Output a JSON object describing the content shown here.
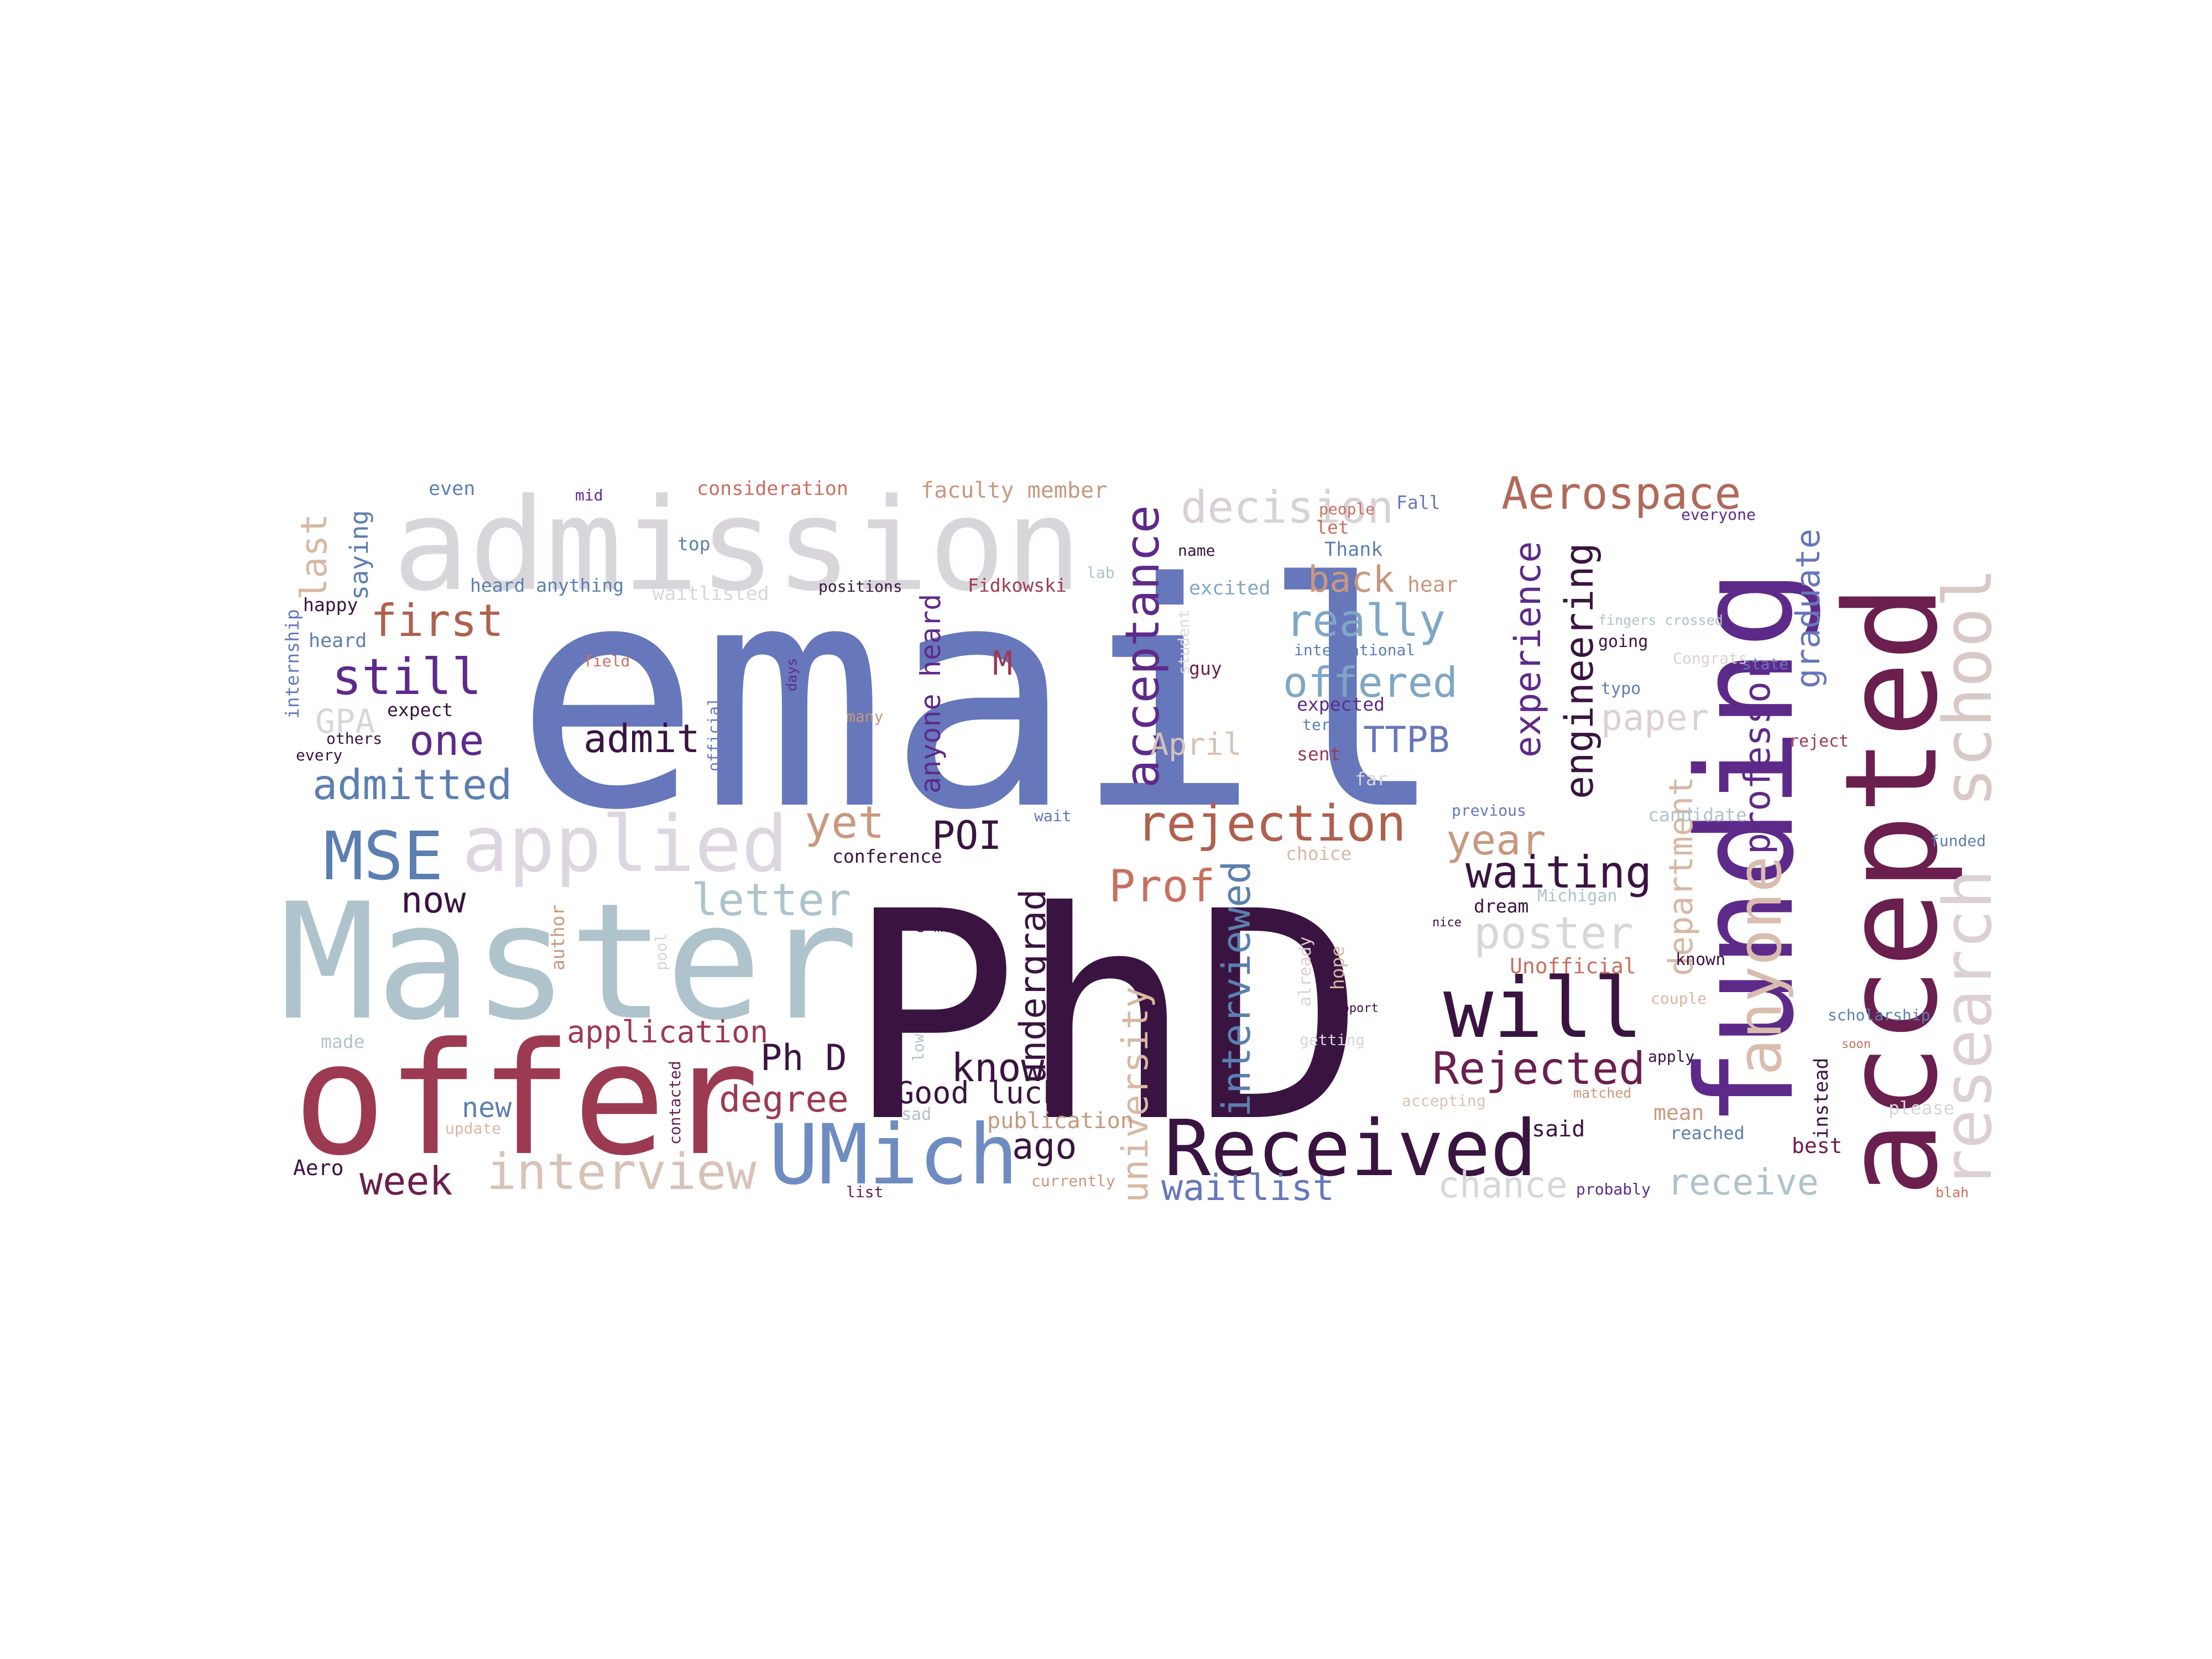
{
  "words": [
    {
      "text": "email",
      "color": "#6677bb"
    },
    {
      "text": "PhD",
      "color": "#3a1440"
    },
    {
      "text": "admission",
      "color": "#d8d6da"
    },
    {
      "text": "Master",
      "color": "#aec3cb"
    },
    {
      "text": "offer",
      "color": "#9c3a52"
    },
    {
      "text": "funding",
      "color": "#5e2a8a"
    },
    {
      "text": "accepted",
      "color": "#6a1f4e"
    },
    {
      "text": "research",
      "color": "#ddd0d2"
    },
    {
      "text": "school",
      "color": "#d8c9c6"
    },
    {
      "text": "Received",
      "color": "#3a1440"
    },
    {
      "text": "UMich",
      "color": "#6e8cc0"
    },
    {
      "text": "applied",
      "color": "#ddd6e0"
    },
    {
      "text": "MSE",
      "color": "#5c7fb0"
    },
    {
      "text": "will",
      "color": "#3a1440"
    },
    {
      "text": "anyone",
      "color": "#d8bcae"
    },
    {
      "text": "acceptance",
      "color": "#5e2a8a"
    },
    {
      "text": "rejection",
      "color": "#b0604f"
    },
    {
      "text": "Aerospace",
      "color": "#b06a5a"
    },
    {
      "text": "decision",
      "color": "#d8d0d6"
    },
    {
      "text": "engineering",
      "color": "#3a1440"
    },
    {
      "text": "experience",
      "color": "#5e2a8a"
    },
    {
      "text": "professor",
      "color": "#5e2a8a"
    },
    {
      "text": "department",
      "color": "#d8b8a4"
    },
    {
      "text": "graduate",
      "color": "#6677bb"
    },
    {
      "text": "interview",
      "color": "#d8c2b8"
    },
    {
      "text": "interviewed",
      "color": "#5c7fb0"
    },
    {
      "text": "university",
      "color": "#d8b8a4"
    },
    {
      "text": "undergrad",
      "color": "#3a1440"
    },
    {
      "text": "anyone heard",
      "color": "#5e2a8a"
    },
    {
      "text": "letter",
      "color": "#aec3cb"
    },
    {
      "text": "poster",
      "color": "#d8d6da"
    },
    {
      "text": "waiting",
      "color": "#3a1440"
    },
    {
      "text": "Rejected",
      "color": "#6a1f4e"
    },
    {
      "text": "waitlist",
      "color": "#6677bb"
    },
    {
      "text": "chance",
      "color": "#d8d6da"
    },
    {
      "text": "receive",
      "color": "#aec3cb"
    },
    {
      "text": "admitted",
      "color": "#5c7fb0"
    },
    {
      "text": "first",
      "color": "#b0604f"
    },
    {
      "text": "still",
      "color": "#5e2a8a"
    },
    {
      "text": "one",
      "color": "#5e2a8a"
    },
    {
      "text": "admit",
      "color": "#3a1440"
    },
    {
      "text": "really",
      "color": "#7fa6c4"
    },
    {
      "text": "offered",
      "color": "#7fa6c4"
    },
    {
      "text": "TTPB",
      "color": "#6677bb"
    },
    {
      "text": "back",
      "color": "#c8987e"
    },
    {
      "text": "paper",
      "color": "#ddd0d2"
    },
    {
      "text": "year",
      "color": "#c8987e"
    },
    {
      "text": "Prof",
      "color": "#c87060"
    },
    {
      "text": "POI",
      "color": "#3a1440"
    },
    {
      "text": "yet",
      "color": "#c8987e"
    },
    {
      "text": "now",
      "color": "#3a1440"
    },
    {
      "text": "know",
      "color": "#3a1440"
    },
    {
      "text": "Ph D",
      "color": "#3a1440"
    },
    {
      "text": "degree",
      "color": "#9c3a52"
    },
    {
      "text": "application",
      "color": "#9c3a52"
    },
    {
      "text": "Good luck",
      "color": "#3a1440"
    },
    {
      "text": "ago",
      "color": "#3a1440"
    },
    {
      "text": "week",
      "color": "#6a1f4e"
    },
    {
      "text": "last",
      "color": "#d8b8a4"
    },
    {
      "text": "saying",
      "color": "#5c7fb0"
    },
    {
      "text": "GPA",
      "color": "#d8d6da"
    },
    {
      "text": "April",
      "color": "#d8c2b8"
    },
    {
      "text": "M",
      "color": "#9c3a52"
    },
    {
      "text": "new",
      "color": "#5c7fb0"
    },
    {
      "text": "publication",
      "color": "#c8987e"
    },
    {
      "text": "Unofficial",
      "color": "#c87060"
    },
    {
      "text": "Aero",
      "color": "#3a1440"
    },
    {
      "text": "said",
      "color": "#3a1440"
    },
    {
      "text": "mean",
      "color": "#c8987e"
    },
    {
      "text": "best",
      "color": "#6a1f4e"
    },
    {
      "text": "reached",
      "color": "#5c7fb0"
    },
    {
      "text": "instead",
      "color": "#3a1440"
    },
    {
      "text": "faculty member",
      "color": "#c8987e"
    },
    {
      "text": "consideration",
      "color": "#c87060"
    },
    {
      "text": "even",
      "color": "#5c7fb0"
    },
    {
      "text": "mid",
      "color": "#5e2a8a"
    },
    {
      "text": "top",
      "color": "#5c7fb0"
    },
    {
      "text": "heard anything",
      "color": "#5c7fb0"
    },
    {
      "text": "waitlisted",
      "color": "#d8d6da"
    },
    {
      "text": "positions",
      "color": "#3a1440"
    },
    {
      "text": "Fidkowski",
      "color": "#9c3a52"
    },
    {
      "text": "happy",
      "color": "#3a1440"
    },
    {
      "text": "heard",
      "color": "#5c7fb0"
    },
    {
      "text": "internship",
      "color": "#6677bb"
    },
    {
      "text": "expect",
      "color": "#3a1440"
    },
    {
      "text": "others",
      "color": "#3a1440"
    },
    {
      "text": "every",
      "color": "#3a1440"
    },
    {
      "text": "conference",
      "color": "#3a1440"
    },
    {
      "text": "Fall",
      "color": "#6677bb"
    },
    {
      "text": "Thank",
      "color": "#5c7fb0"
    },
    {
      "text": "excited",
      "color": "#7fa6c4"
    },
    {
      "text": "hear",
      "color": "#c8987e"
    },
    {
      "text": "lab",
      "color": "#aec3cb"
    },
    {
      "text": "name",
      "color": "#3a1440"
    },
    {
      "text": "let",
      "color": "#c87060"
    },
    {
      "text": "people",
      "color": "#c87060"
    },
    {
      "text": "everyone",
      "color": "#5e2a8a"
    },
    {
      "text": "international",
      "color": "#5c7fb0"
    },
    {
      "text": "guy",
      "color": "#6a1f4e"
    },
    {
      "text": "expected",
      "color": "#5e2a8a"
    },
    {
      "text": "term",
      "color": "#5c7fb0"
    },
    {
      "text": "sent",
      "color": "#9c3a52"
    },
    {
      "text": "far",
      "color": "#d8d6da"
    },
    {
      "text": "going",
      "color": "#3a1440"
    },
    {
      "text": "typo",
      "color": "#5c7fb0"
    },
    {
      "text": "state",
      "color": "#6677bb"
    },
    {
      "text": "fingers crossed",
      "color": "#aec3cb"
    },
    {
      "text": "Congrats",
      "color": "#ddd0d2"
    },
    {
      "text": "reject",
      "color": "#9c3a52"
    },
    {
      "text": "funded",
      "color": "#5c7fb0"
    },
    {
      "text": "candidate",
      "color": "#aec3cb"
    },
    {
      "text": "previous",
      "color": "#6677bb"
    },
    {
      "text": "Michigan",
      "color": "#aec3cb"
    },
    {
      "text": "dream",
      "color": "#3a1440"
    },
    {
      "text": "choice",
      "color": "#d8b8a4"
    },
    {
      "text": "known",
      "color": "#3a1440"
    },
    {
      "text": "couple",
      "color": "#d8b8a4"
    },
    {
      "text": "scholarship",
      "color": "#5c7fb0"
    },
    {
      "text": "apply",
      "color": "#3a1440"
    },
    {
      "text": "accepting",
      "color": "#d8c2b8"
    },
    {
      "text": "please",
      "color": "#d8d6da"
    },
    {
      "text": "blah",
      "color": "#c87060"
    },
    {
      "text": "probably",
      "color": "#5e2a8a"
    },
    {
      "text": "currently",
      "color": "#c8987e"
    },
    {
      "text": "list",
      "color": "#6a1f4e"
    },
    {
      "text": "contacted",
      "color": "#6a1f4e"
    },
    {
      "text": "update",
      "color": "#d8b8a4"
    },
    {
      "text": "made",
      "color": "#aec3cb"
    },
    {
      "text": "sad",
      "color": "#aec3cb"
    },
    {
      "text": "e mail",
      "color": "#3a1440"
    },
    {
      "text": "hope",
      "color": "#d8b8a4"
    },
    {
      "text": "getting",
      "color": "#d8d6da"
    },
    {
      "text": "support",
      "color": "#3a1440"
    },
    {
      "text": "nice",
      "color": "#3a1440"
    },
    {
      "text": "wait",
      "color": "#6677bb"
    },
    {
      "text": "author",
      "color": "#c8987e"
    },
    {
      "text": "pool",
      "color": "#ddd0d2"
    },
    {
      "text": "field",
      "color": "#c87060"
    },
    {
      "text": "days",
      "color": "#5e2a8a"
    },
    {
      "text": "official",
      "color": "#6677bb"
    },
    {
      "text": "many",
      "color": "#c8987e"
    },
    {
      "text": "already",
      "color": "#ddd0d2"
    },
    {
      "text": "low",
      "color": "#aec3cb"
    },
    {
      "text": "student",
      "color": "#ddd6e0"
    },
    {
      "text": "matched",
      "color": "#c8987e"
    },
    {
      "text": "soon",
      "color": "#c87060"
    }
  ]
}
